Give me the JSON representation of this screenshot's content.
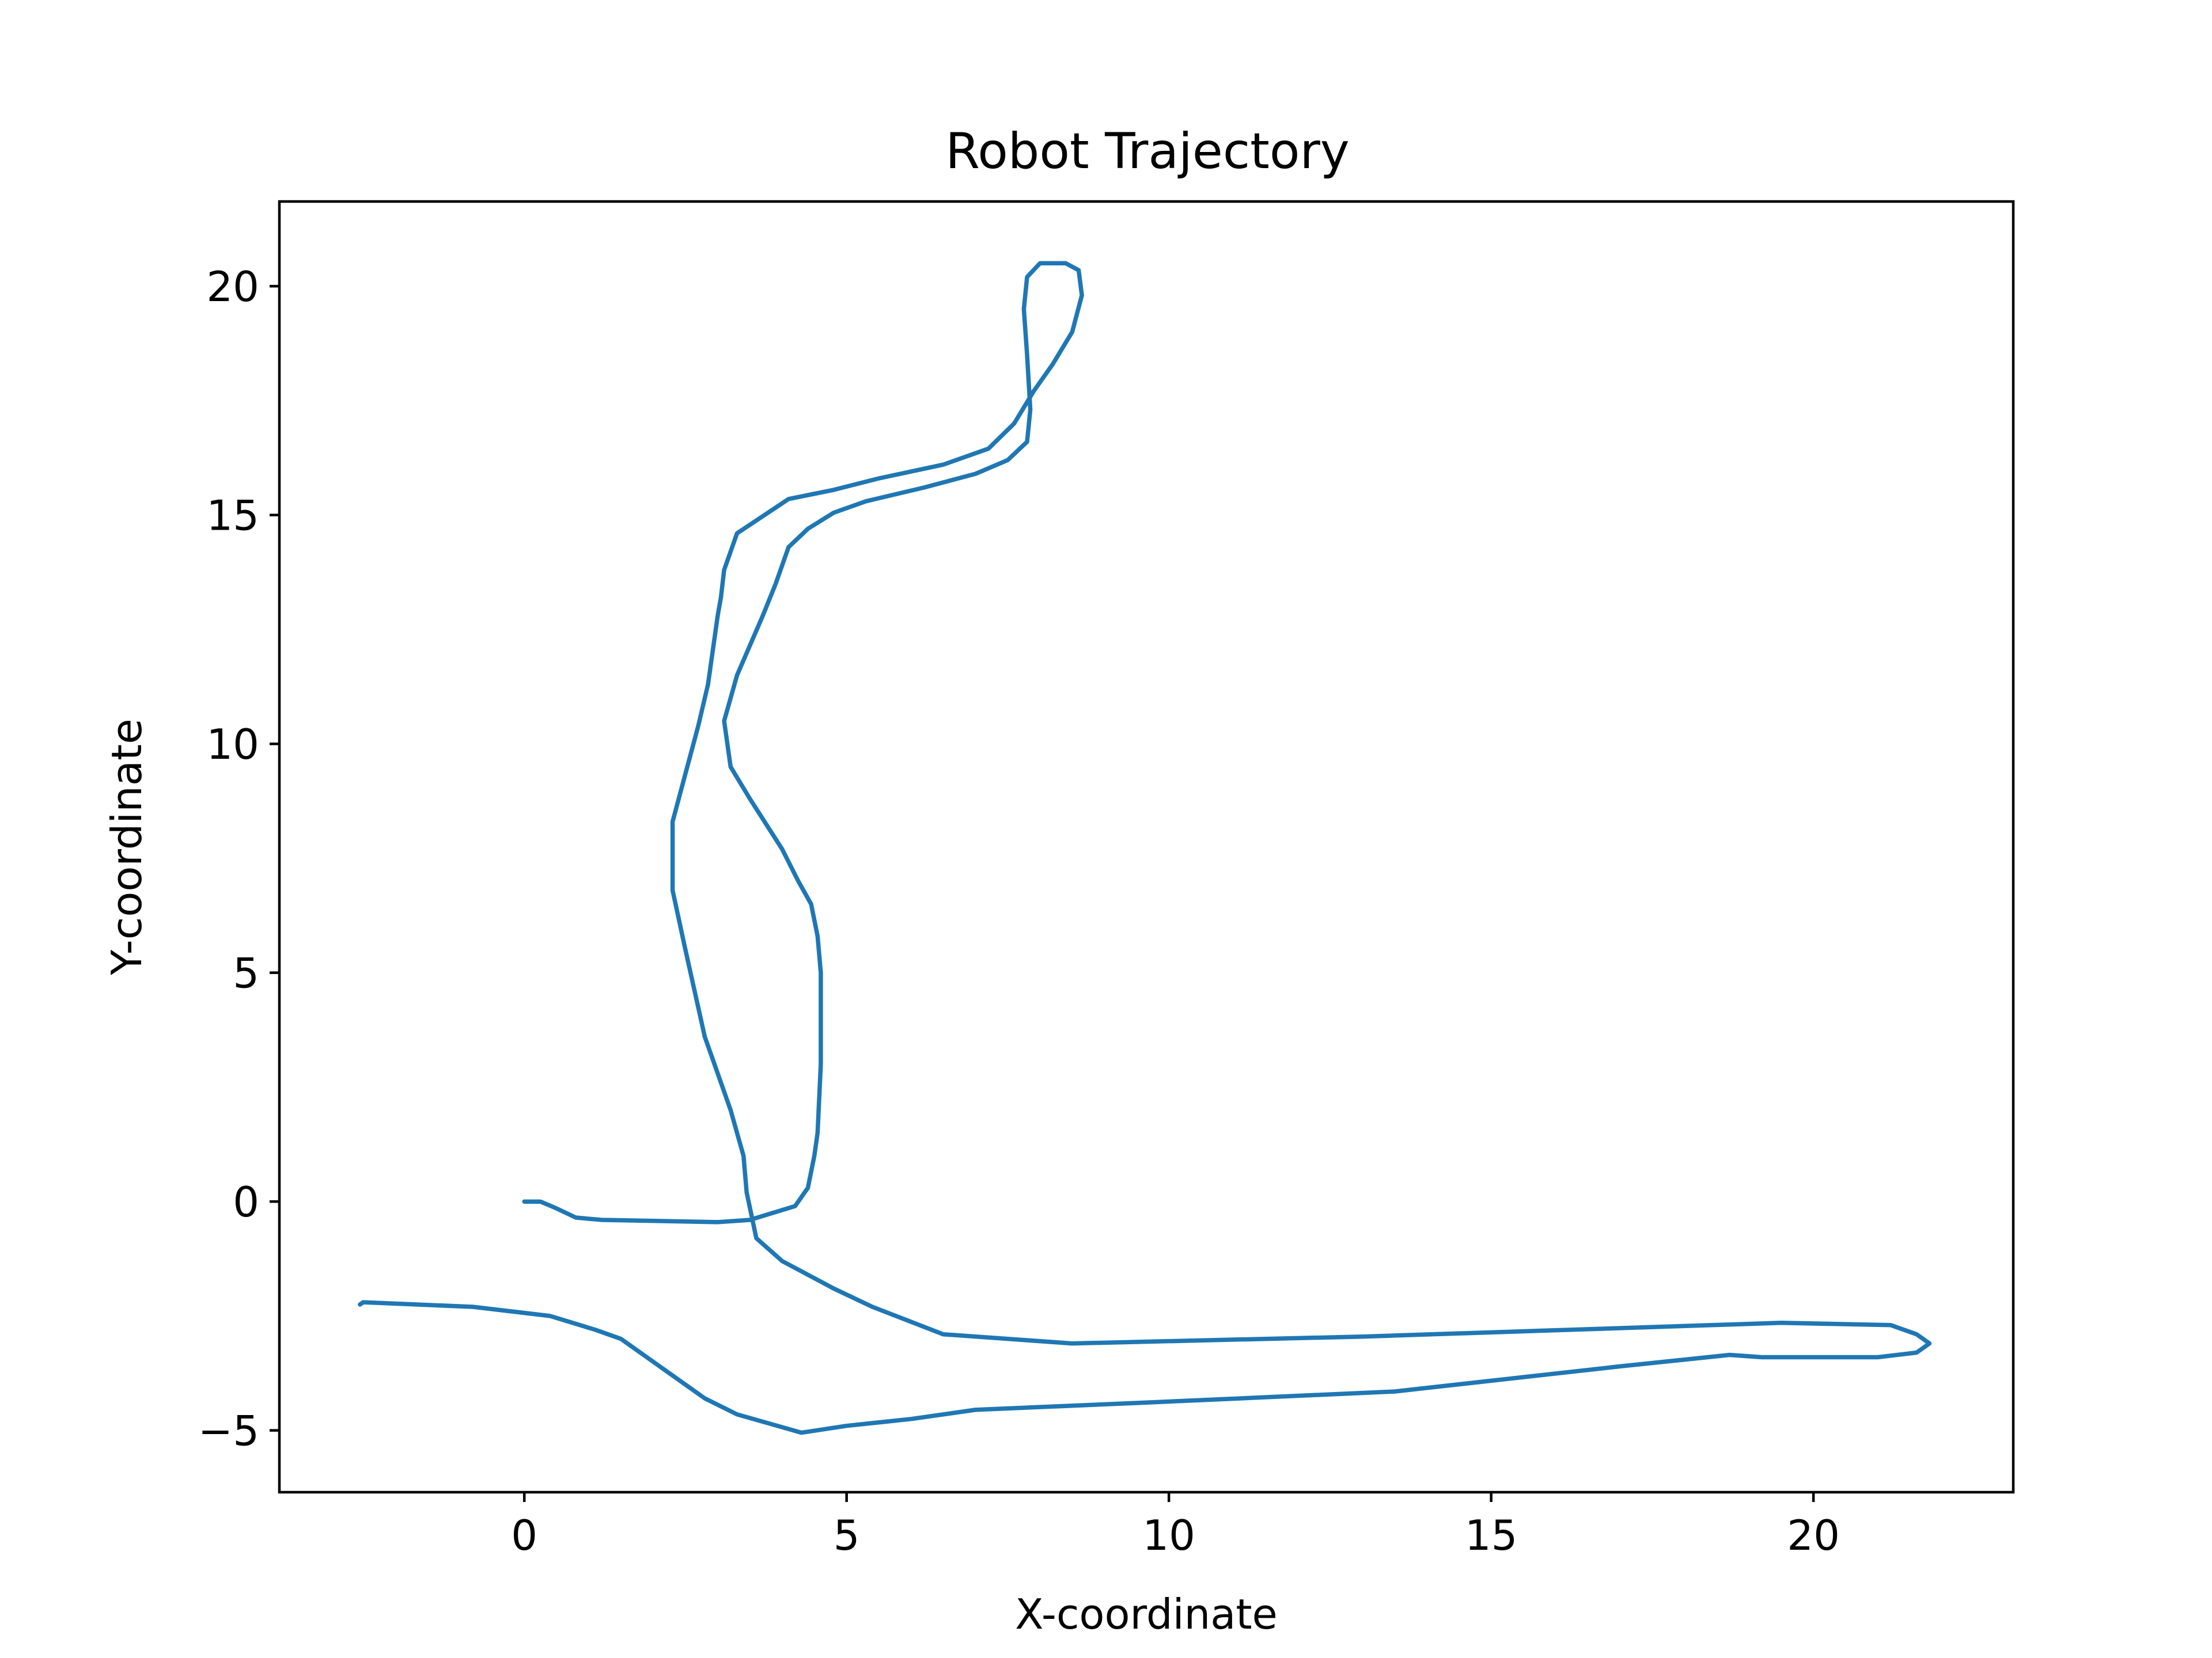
{
  "chart_data": {
    "type": "line",
    "title": "Robot Trajectory",
    "xlabel": "X-coordinate",
    "ylabel": "Y-coordinate",
    "xlim": [
      -3.8,
      23.1
    ],
    "ylim": [
      -6.35,
      21.85
    ],
    "xticks": [
      0,
      5,
      10,
      15,
      20
    ],
    "xtick_labels": [
      "0",
      "5",
      "10",
      "15",
      "20"
    ],
    "yticks": [
      -5,
      0,
      5,
      10,
      15,
      20
    ],
    "ytick_labels": [
      "−5",
      "0",
      "5",
      "10",
      "15",
      "20"
    ],
    "grid": false,
    "legend": "none",
    "color": "#1f77b4",
    "series": [
      {
        "x": [
          0,
          0.25,
          0.5,
          0.8,
          1.2,
          3.0,
          3.5,
          4.2,
          4.4,
          4.5,
          4.55,
          4.6,
          4.6,
          4.55,
          4.45,
          4.25,
          4.0,
          3.5,
          3.2,
          3.1,
          3.3,
          3.7,
          3.9,
          4.1,
          4.4,
          4.8,
          5.3,
          6.2,
          7.0,
          7.5,
          7.8,
          7.85,
          7.8,
          7.75,
          7.8,
          8.0,
          8.4,
          8.6,
          8.65,
          8.5,
          8.2,
          7.9,
          7.6,
          7.2,
          6.5,
          5.5,
          4.8,
          4.1,
          3.3,
          3.1,
          3.05,
          3.0,
          2.85,
          2.7,
          2.3,
          2.3,
          2.5,
          2.8,
          3.2,
          3.4,
          3.45,
          3.6,
          4.0,
          4.8,
          5.4,
          6.5,
          8.5,
          13.0,
          19.5,
          21.2,
          21.6,
          21.8,
          21.6,
          21.0,
          19.2,
          18.7,
          17.0,
          13.5,
          9.5,
          7.0,
          6.0,
          5.0,
          4.3,
          3.3,
          2.8,
          1.5,
          1.1,
          0.4,
          -0.8,
          -2.5,
          -2.55
        ],
        "y": [
          0,
          0,
          -0.15,
          -0.35,
          -0.4,
          -0.45,
          -0.4,
          -0.1,
          0.3,
          1.0,
          1.5,
          3.0,
          5.0,
          5.8,
          6.5,
          7.0,
          7.7,
          8.8,
          9.5,
          10.5,
          11.5,
          12.8,
          13.5,
          14.3,
          14.7,
          15.05,
          15.3,
          15.6,
          15.9,
          16.2,
          16.6,
          17.3,
          18.5,
          19.5,
          20.2,
          20.5,
          20.5,
          20.35,
          19.8,
          19.0,
          18.3,
          17.7,
          17.0,
          16.45,
          16.1,
          15.8,
          15.55,
          15.35,
          14.6,
          13.8,
          13.2,
          12.8,
          11.3,
          10.4,
          8.3,
          6.8,
          5.5,
          3.6,
          2.0,
          1.0,
          0.2,
          -0.8,
          -1.3,
          -1.9,
          -2.3,
          -2.9,
          -3.1,
          -2.95,
          -2.65,
          -2.7,
          -2.9,
          -3.1,
          -3.3,
          -3.4,
          -3.4,
          -3.35,
          -3.6,
          -4.15,
          -4.4,
          -4.55,
          -4.75,
          -4.9,
          -5.05,
          -4.65,
          -4.3,
          -3.0,
          -2.8,
          -2.5,
          -2.3,
          -2.2,
          -2.25
        ]
      }
    ]
  }
}
